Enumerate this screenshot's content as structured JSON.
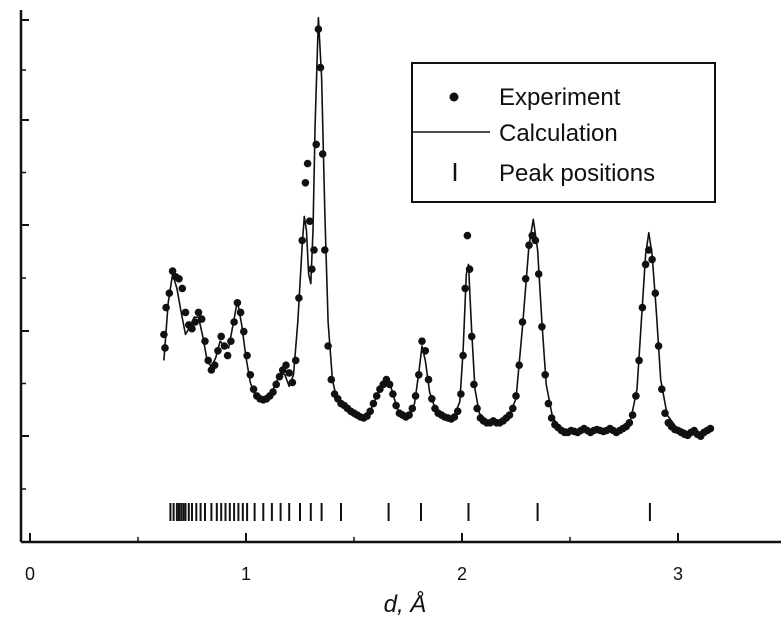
{
  "chart_data": {
    "type": "scatter",
    "xlabel": "d, Å",
    "ylabel": "",
    "xlim": [
      -0.05,
      3.45
    ],
    "ylim": [
      -0.1,
      4.9
    ],
    "x_ticks": [
      "0",
      "1",
      "2",
      "3"
    ],
    "y_label_ticks": [],
    "grid": false,
    "legend_position": "top-right",
    "legend": [
      {
        "label": "Experiment",
        "marker": "dot"
      },
      {
        "label": "Calculation",
        "marker": "line"
      },
      {
        "label": "Peak positions",
        "marker": "tick"
      }
    ],
    "series": [
      {
        "name": "Experiment",
        "points": [
          [
            0.62,
            1.62
          ],
          [
            0.625,
            1.48
          ],
          [
            0.63,
            1.9
          ],
          [
            0.645,
            2.05
          ],
          [
            0.66,
            2.28
          ],
          [
            0.675,
            2.22
          ],
          [
            0.69,
            2.2
          ],
          [
            0.705,
            2.1
          ],
          [
            0.72,
            1.85
          ],
          [
            0.735,
            1.72
          ],
          [
            0.75,
            1.68
          ],
          [
            0.765,
            1.75
          ],
          [
            0.78,
            1.85
          ],
          [
            0.795,
            1.78
          ],
          [
            0.81,
            1.55
          ],
          [
            0.825,
            1.35
          ],
          [
            0.84,
            1.25
          ],
          [
            0.855,
            1.3
          ],
          [
            0.87,
            1.45
          ],
          [
            0.885,
            1.6
          ],
          [
            0.9,
            1.5
          ],
          [
            0.915,
            1.4
          ],
          [
            0.93,
            1.55
          ],
          [
            0.945,
            1.75
          ],
          [
            0.96,
            1.95
          ],
          [
            0.975,
            1.85
          ],
          [
            0.99,
            1.65
          ],
          [
            1.005,
            1.4
          ],
          [
            1.02,
            1.2
          ],
          [
            1.035,
            1.05
          ],
          [
            1.05,
            0.98
          ],
          [
            1.065,
            0.95
          ],
          [
            1.08,
            0.94
          ],
          [
            1.095,
            0.95
          ],
          [
            1.11,
            0.98
          ],
          [
            1.125,
            1.02
          ],
          [
            1.14,
            1.1
          ],
          [
            1.155,
            1.18
          ],
          [
            1.17,
            1.25
          ],
          [
            1.185,
            1.3
          ],
          [
            1.2,
            1.22
          ],
          [
            1.215,
            1.12
          ],
          [
            1.23,
            1.35
          ],
          [
            1.245,
            2.0
          ],
          [
            1.26,
            2.6
          ],
          [
            1.275,
            3.2
          ],
          [
            1.285,
            3.4
          ],
          [
            1.295,
            2.8
          ],
          [
            1.305,
            2.3
          ],
          [
            1.315,
            2.5
          ],
          [
            1.325,
            3.6
          ],
          [
            1.335,
            4.8
          ],
          [
            1.345,
            4.4
          ],
          [
            1.355,
            3.5
          ],
          [
            1.365,
            2.5
          ],
          [
            1.38,
            1.5
          ],
          [
            1.395,
            1.15
          ],
          [
            1.41,
            1.0
          ],
          [
            1.425,
            0.95
          ],
          [
            1.44,
            0.9
          ],
          [
            1.455,
            0.88
          ],
          [
            1.47,
            0.85
          ],
          [
            1.485,
            0.82
          ],
          [
            1.5,
            0.8
          ],
          [
            1.515,
            0.78
          ],
          [
            1.53,
            0.76
          ],
          [
            1.545,
            0.75
          ],
          [
            1.56,
            0.77
          ],
          [
            1.575,
            0.82
          ],
          [
            1.59,
            0.9
          ],
          [
            1.605,
            0.98
          ],
          [
            1.62,
            1.05
          ],
          [
            1.635,
            1.1
          ],
          [
            1.65,
            1.15
          ],
          [
            1.665,
            1.1
          ],
          [
            1.68,
            1.0
          ],
          [
            1.695,
            0.88
          ],
          [
            1.71,
            0.8
          ],
          [
            1.725,
            0.78
          ],
          [
            1.74,
            0.76
          ],
          [
            1.755,
            0.78
          ],
          [
            1.77,
            0.85
          ],
          [
            1.785,
            0.98
          ],
          [
            1.8,
            1.2
          ],
          [
            1.815,
            1.55
          ],
          [
            1.83,
            1.45
          ],
          [
            1.845,
            1.15
          ],
          [
            1.86,
            0.95
          ],
          [
            1.875,
            0.85
          ],
          [
            1.89,
            0.8
          ],
          [
            1.905,
            0.78
          ],
          [
            1.92,
            0.76
          ],
          [
            1.935,
            0.75
          ],
          [
            1.95,
            0.74
          ],
          [
            1.965,
            0.76
          ],
          [
            1.98,
            0.82
          ],
          [
            1.995,
            1.0
          ],
          [
            2.005,
            1.4
          ],
          [
            2.015,
            2.1
          ],
          [
            2.025,
            2.65
          ],
          [
            2.035,
            2.3
          ],
          [
            2.045,
            1.6
          ],
          [
            2.055,
            1.1
          ],
          [
            2.07,
            0.85
          ],
          [
            2.085,
            0.75
          ],
          [
            2.1,
            0.72
          ],
          [
            2.115,
            0.7
          ],
          [
            2.13,
            0.7
          ],
          [
            2.145,
            0.72
          ],
          [
            2.16,
            0.7
          ],
          [
            2.175,
            0.7
          ],
          [
            2.19,
            0.72
          ],
          [
            2.205,
            0.75
          ],
          [
            2.22,
            0.78
          ],
          [
            2.235,
            0.85
          ],
          [
            2.25,
            0.98
          ],
          [
            2.265,
            1.3
          ],
          [
            2.28,
            1.75
          ],
          [
            2.295,
            2.2
          ],
          [
            2.31,
            2.55
          ],
          [
            2.325,
            2.65
          ],
          [
            2.34,
            2.6
          ],
          [
            2.355,
            2.25
          ],
          [
            2.37,
            1.7
          ],
          [
            2.385,
            1.2
          ],
          [
            2.4,
            0.9
          ],
          [
            2.415,
            0.75
          ],
          [
            2.43,
            0.68
          ],
          [
            2.445,
            0.65
          ],
          [
            2.46,
            0.62
          ],
          [
            2.475,
            0.6
          ],
          [
            2.49,
            0.6
          ],
          [
            2.505,
            0.62
          ],
          [
            2.52,
            0.61
          ],
          [
            2.535,
            0.6
          ],
          [
            2.55,
            0.62
          ],
          [
            2.565,
            0.64
          ],
          [
            2.58,
            0.62
          ],
          [
            2.595,
            0.6
          ],
          [
            2.61,
            0.62
          ],
          [
            2.625,
            0.63
          ],
          [
            2.64,
            0.62
          ],
          [
            2.655,
            0.61
          ],
          [
            2.67,
            0.62
          ],
          [
            2.685,
            0.64
          ],
          [
            2.7,
            0.62
          ],
          [
            2.715,
            0.6
          ],
          [
            2.73,
            0.62
          ],
          [
            2.745,
            0.64
          ],
          [
            2.76,
            0.66
          ],
          [
            2.775,
            0.7
          ],
          [
            2.79,
            0.78
          ],
          [
            2.805,
            0.98
          ],
          [
            2.82,
            1.35
          ],
          [
            2.835,
            1.9
          ],
          [
            2.85,
            2.35
          ],
          [
            2.865,
            2.5
          ],
          [
            2.88,
            2.4
          ],
          [
            2.895,
            2.05
          ],
          [
            2.91,
            1.5
          ],
          [
            2.925,
            1.05
          ],
          [
            2.94,
            0.8
          ],
          [
            2.955,
            0.7
          ],
          [
            2.97,
            0.66
          ],
          [
            2.985,
            0.63
          ],
          [
            3.0,
            0.62
          ],
          [
            3.015,
            0.6
          ],
          [
            3.03,
            0.58
          ],
          [
            3.045,
            0.57
          ],
          [
            3.06,
            0.6
          ],
          [
            3.075,
            0.62
          ],
          [
            3.09,
            0.58
          ],
          [
            3.105,
            0.56
          ],
          [
            3.12,
            0.6
          ],
          [
            3.135,
            0.62
          ],
          [
            3.15,
            0.64
          ]
        ]
      },
      {
        "name": "Calculation",
        "points": [
          [
            0.62,
            1.35
          ],
          [
            0.64,
            1.95
          ],
          [
            0.66,
            2.25
          ],
          [
            0.68,
            2.1
          ],
          [
            0.7,
            1.85
          ],
          [
            0.72,
            1.62
          ],
          [
            0.74,
            1.7
          ],
          [
            0.76,
            1.8
          ],
          [
            0.78,
            1.8
          ],
          [
            0.8,
            1.6
          ],
          [
            0.82,
            1.35
          ],
          [
            0.84,
            1.28
          ],
          [
            0.86,
            1.38
          ],
          [
            0.88,
            1.55
          ],
          [
            0.9,
            1.5
          ],
          [
            0.92,
            1.48
          ],
          [
            0.94,
            1.72
          ],
          [
            0.96,
            1.97
          ],
          [
            0.98,
            1.72
          ],
          [
            1.0,
            1.38
          ],
          [
            1.02,
            1.12
          ],
          [
            1.04,
            1.0
          ],
          [
            1.06,
            0.95
          ],
          [
            1.08,
            0.93
          ],
          [
            1.1,
            0.95
          ],
          [
            1.12,
            1.02
          ],
          [
            1.14,
            1.12
          ],
          [
            1.16,
            1.22
          ],
          [
            1.18,
            1.2
          ],
          [
            1.2,
            1.08
          ],
          [
            1.22,
            1.2
          ],
          [
            1.24,
            1.75
          ],
          [
            1.26,
            2.55
          ],
          [
            1.27,
            2.85
          ],
          [
            1.28,
            2.7
          ],
          [
            1.29,
            2.25
          ],
          [
            1.3,
            2.15
          ],
          [
            1.31,
            2.7
          ],
          [
            1.32,
            3.8
          ],
          [
            1.335,
            4.92
          ],
          [
            1.35,
            4.3
          ],
          [
            1.365,
            2.9
          ],
          [
            1.38,
            1.75
          ],
          [
            1.4,
            1.15
          ],
          [
            1.42,
            0.95
          ],
          [
            1.45,
            0.86
          ],
          [
            1.48,
            0.81
          ],
          [
            1.51,
            0.77
          ],
          [
            1.54,
            0.74
          ],
          [
            1.57,
            0.8
          ],
          [
            1.6,
            0.95
          ],
          [
            1.63,
            1.12
          ],
          [
            1.65,
            1.18
          ],
          [
            1.67,
            1.08
          ],
          [
            1.7,
            0.85
          ],
          [
            1.73,
            0.76
          ],
          [
            1.76,
            0.78
          ],
          [
            1.78,
            0.9
          ],
          [
            1.8,
            1.22
          ],
          [
            1.815,
            1.5
          ],
          [
            1.83,
            1.35
          ],
          [
            1.85,
            1.02
          ],
          [
            1.88,
            0.82
          ],
          [
            1.92,
            0.76
          ],
          [
            1.96,
            0.75
          ],
          [
            1.99,
            0.92
          ],
          [
            2.005,
            1.45
          ],
          [
            2.02,
            2.25
          ],
          [
            2.03,
            2.35
          ],
          [
            2.045,
            1.65
          ],
          [
            2.06,
            1.05
          ],
          [
            2.08,
            0.8
          ],
          [
            2.12,
            0.71
          ],
          [
            2.17,
            0.7
          ],
          [
            2.21,
            0.74
          ],
          [
            2.25,
            0.95
          ],
          [
            2.28,
            1.7
          ],
          [
            2.31,
            2.55
          ],
          [
            2.33,
            2.82
          ],
          [
            2.35,
            2.5
          ],
          [
            2.37,
            1.75
          ],
          [
            2.39,
            1.1
          ],
          [
            2.42,
            0.75
          ],
          [
            2.46,
            0.64
          ],
          [
            2.55,
            0.61
          ],
          [
            2.65,
            0.62
          ],
          [
            2.75,
            0.64
          ],
          [
            2.78,
            0.72
          ],
          [
            2.81,
            1.05
          ],
          [
            2.83,
            1.75
          ],
          [
            2.85,
            2.45
          ],
          [
            2.865,
            2.68
          ],
          [
            2.88,
            2.45
          ],
          [
            2.9,
            1.85
          ],
          [
            2.92,
            1.15
          ],
          [
            2.95,
            0.78
          ],
          [
            2.99,
            0.66
          ],
          [
            3.05,
            0.6
          ],
          [
            3.1,
            0.59
          ],
          [
            3.15,
            0.6
          ]
        ]
      }
    ],
    "peak_positions": [
      0.65,
      0.665,
      0.68,
      0.69,
      0.7,
      0.71,
      0.72,
      0.735,
      0.75,
      0.77,
      0.79,
      0.81,
      0.84,
      0.865,
      0.885,
      0.905,
      0.925,
      0.945,
      0.965,
      0.985,
      1.005,
      1.04,
      1.08,
      1.12,
      1.16,
      1.2,
      1.25,
      1.3,
      1.35,
      1.44,
      1.66,
      1.81,
      2.03,
      2.35,
      2.87
    ]
  }
}
